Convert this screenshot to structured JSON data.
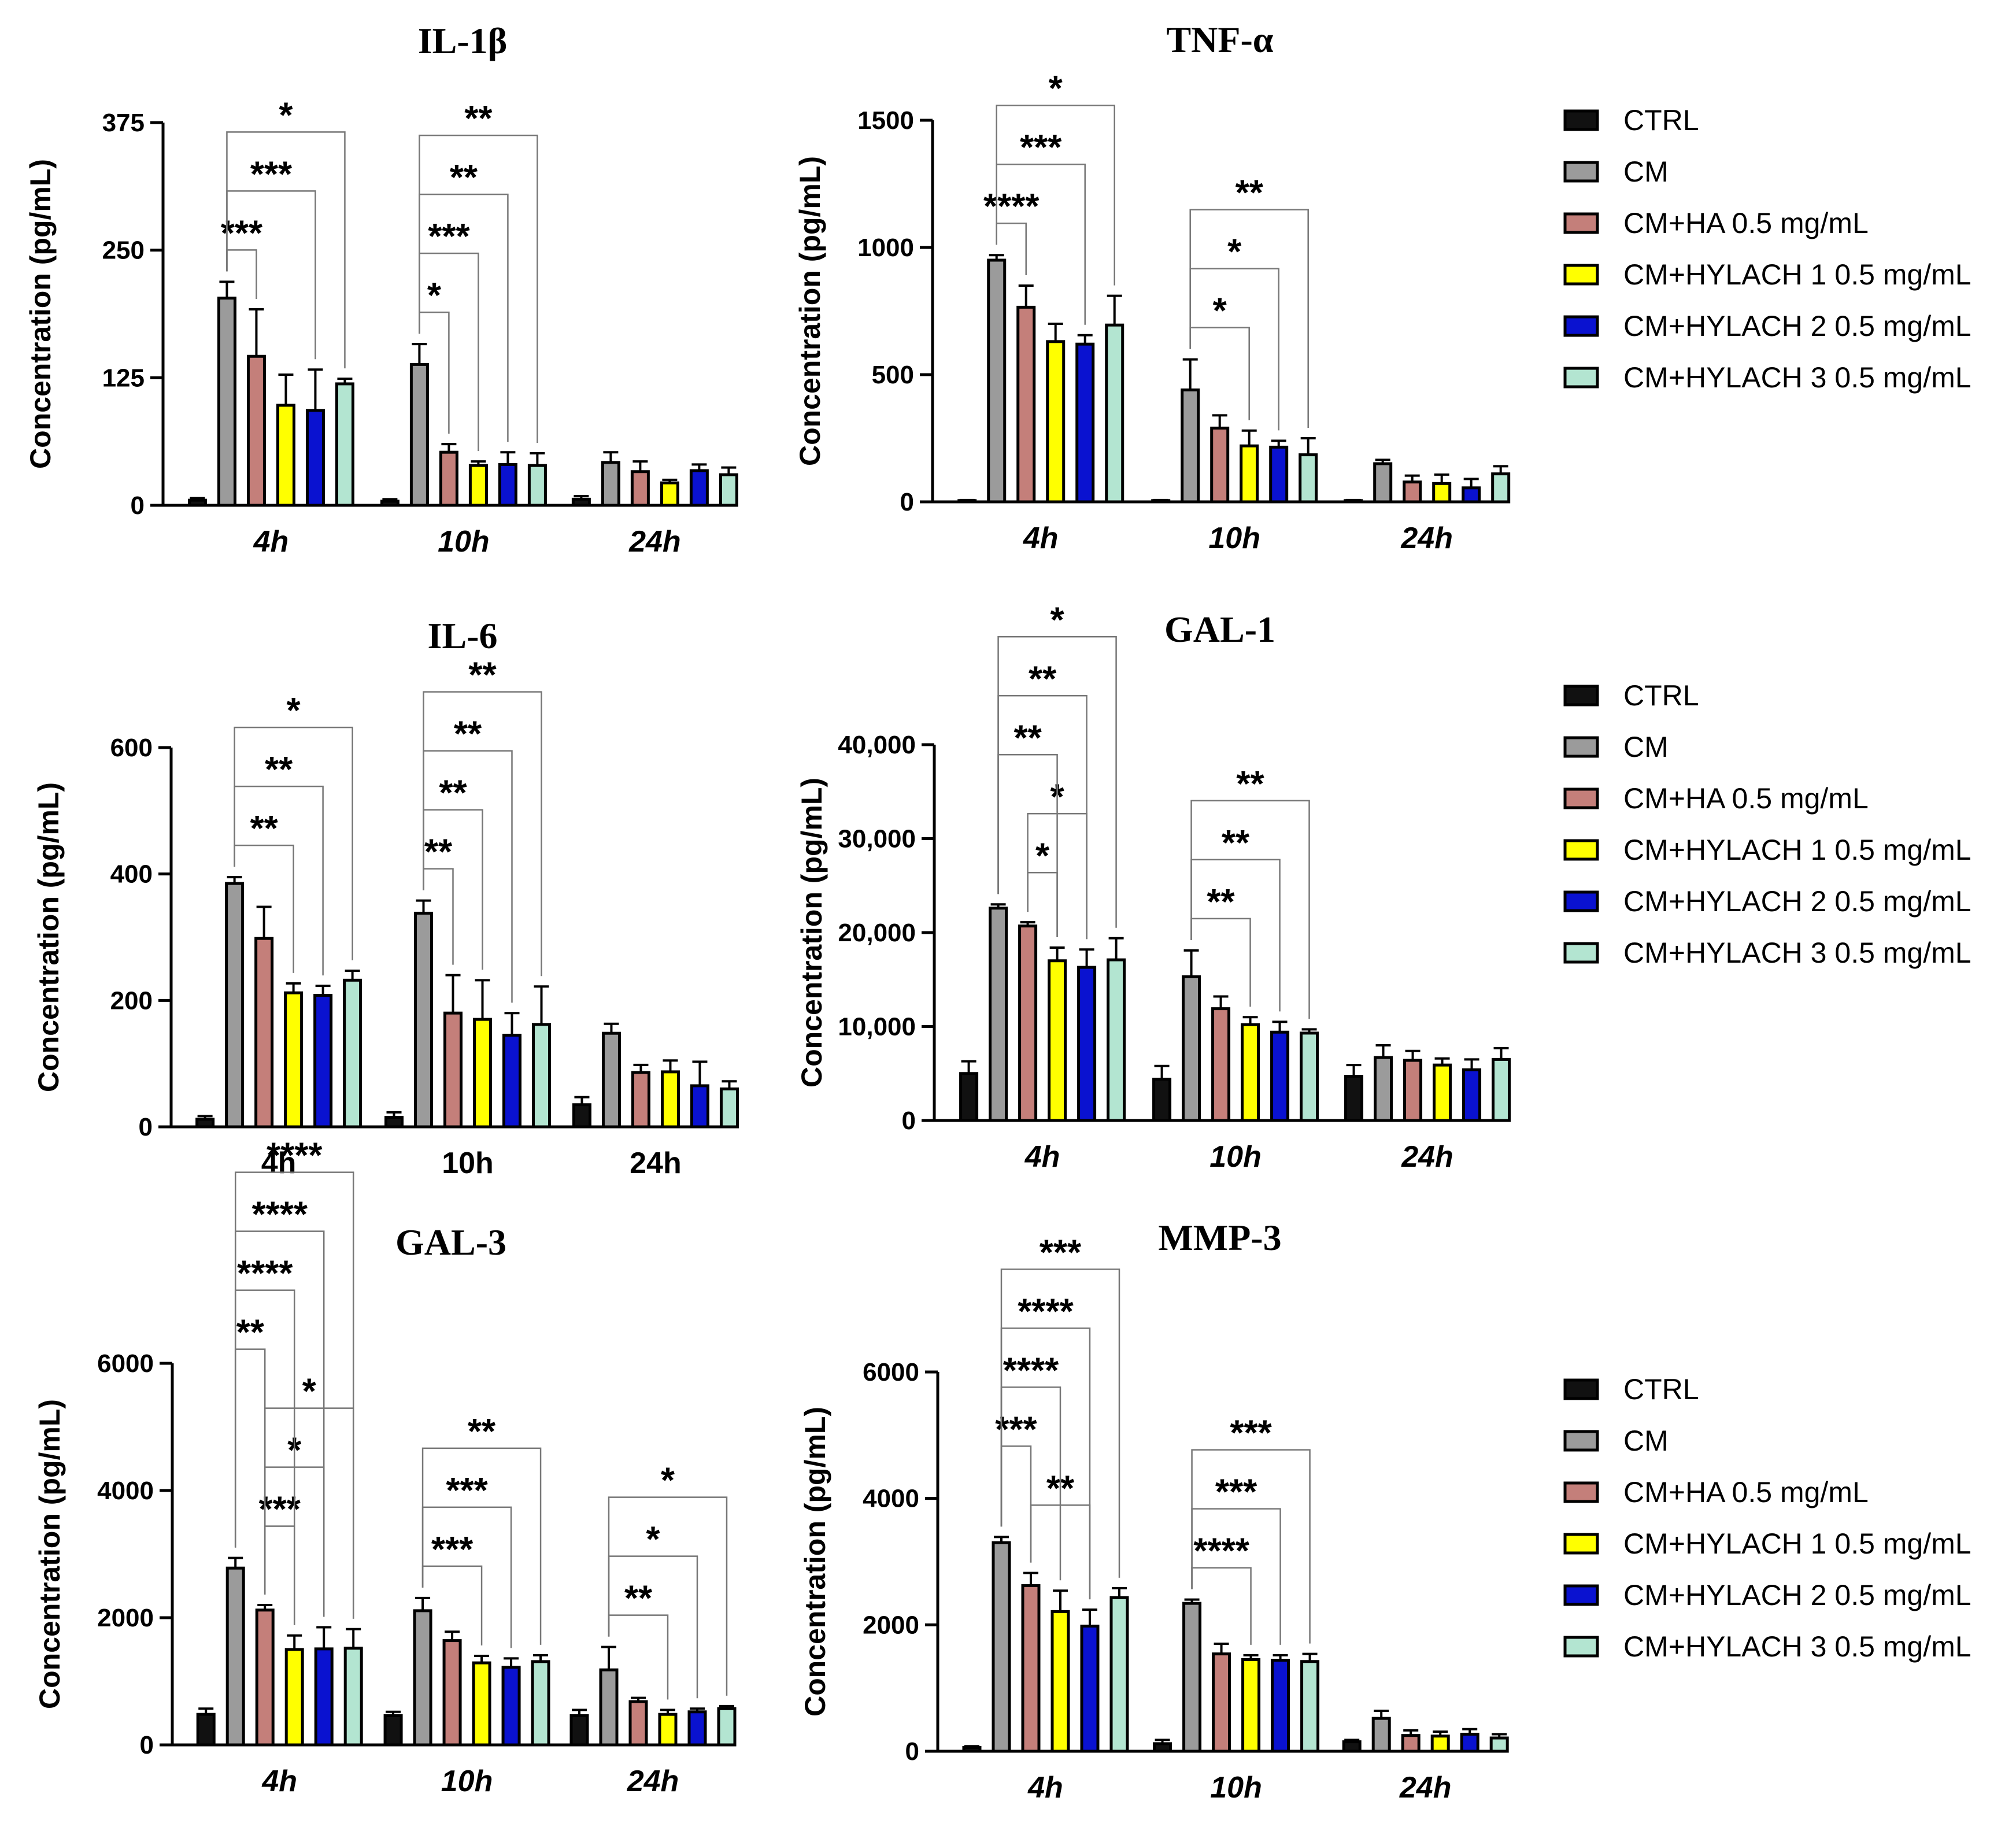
{
  "series_colors": {
    "CTRL": "#111111",
    "CM": "#9b9b9b",
    "CM+HA 0.5 mg/mL": "#c47f7a",
    "CM+HYLACH 1 0.5 mg/mL": "#ffff00",
    "CM+HYLACH 2 0.5 mg/mL": "#0a12d0",
    "CM+HYLACH 3 0.5 mg/mL": "#b3e5d1"
  },
  "legend_labels": [
    "CTRL",
    "CM",
    "CM+HA 0.5 mg/mL",
    "CM+HYLACH 1 0.5 mg/mL",
    "CM+HYLACH 2 0.5 mg/mL",
    "CM+HYLACH 3 0.5 mg/mL"
  ],
  "chart_data": [
    {
      "id": "il1b",
      "type": "bar",
      "title": "IL-1β",
      "ylabel": "Concentration (pg/mL)",
      "xlabel": "",
      "categories": [
        "4h",
        "10h",
        "24h"
      ],
      "category_style": "italic",
      "ylim": [
        0,
        375
      ],
      "yticks": [
        0,
        125,
        250,
        375
      ],
      "ytick_labels": [
        "0",
        "125",
        "250",
        "375"
      ],
      "series": [
        {
          "name": "CTRL",
          "values": [
            5,
            4,
            6
          ],
          "errors": [
            2,
            2,
            3
          ]
        },
        {
          "name": "CM",
          "values": [
            203,
            138,
            42
          ],
          "errors": [
            16,
            20,
            10
          ]
        },
        {
          "name": "CM+HA 0.5 mg/mL",
          "values": [
            146,
            52,
            33
          ],
          "errors": [
            46,
            8,
            10
          ]
        },
        {
          "name": "CM+HYLACH 1 0.5 mg/mL",
          "values": [
            98,
            39,
            22
          ],
          "errors": [
            30,
            4,
            3
          ]
        },
        {
          "name": "CM+HYLACH 2 0.5 mg/mL",
          "values": [
            93,
            40,
            34
          ],
          "errors": [
            40,
            12,
            6
          ]
        },
        {
          "name": "CM+HYLACH 3 0.5 mg/mL",
          "values": [
            119,
            39,
            30
          ],
          "errors": [
            5,
            12,
            7
          ]
        }
      ],
      "significance": [
        {
          "group": 0,
          "from": 1,
          "to": 2,
          "label": "***",
          "level": 0
        },
        {
          "group": 0,
          "from": 1,
          "to": 4,
          "label": "***",
          "level": 1
        },
        {
          "group": 0,
          "from": 1,
          "to": 5,
          "label": "*",
          "level": 2
        },
        {
          "group": 1,
          "from": 1,
          "to": 2,
          "label": "*",
          "level": 0
        },
        {
          "group": 1,
          "from": 1,
          "to": 3,
          "label": "***",
          "level": 1
        },
        {
          "group": 1,
          "from": 1,
          "to": 4,
          "label": "**",
          "level": 2
        },
        {
          "group": 1,
          "from": 1,
          "to": 5,
          "label": "**",
          "level": 3
        }
      ]
    },
    {
      "id": "tnfa",
      "type": "bar",
      "title": "TNF-α",
      "ylabel": "Concentration (pg/mL)",
      "xlabel": "",
      "categories": [
        "4h",
        "10h",
        "24h"
      ],
      "category_style": "italic",
      "ylim": [
        0,
        1500
      ],
      "yticks": [
        0,
        500,
        1000,
        1500
      ],
      "ytick_labels": [
        "0",
        "500",
        "1000",
        "1500"
      ],
      "series": [
        {
          "name": "CTRL",
          "values": [
            5,
            5,
            5
          ],
          "errors": [
            2,
            2,
            2
          ]
        },
        {
          "name": "CM",
          "values": [
            950,
            440,
            150
          ],
          "errors": [
            20,
            120,
            15
          ]
        },
        {
          "name": "CM+HA 0.5 mg/mL",
          "values": [
            765,
            290,
            78
          ],
          "errors": [
            85,
            50,
            25
          ]
        },
        {
          "name": "CM+HYLACH 1 0.5 mg/mL",
          "values": [
            630,
            220,
            72
          ],
          "errors": [
            70,
            60,
            35
          ]
        },
        {
          "name": "CM+HYLACH 2 0.5 mg/mL",
          "values": [
            620,
            215,
            55
          ],
          "errors": [
            35,
            25,
            35
          ]
        },
        {
          "name": "CM+HYLACH 3 0.5 mg/mL",
          "values": [
            695,
            185,
            110
          ],
          "errors": [
            115,
            65,
            30
          ]
        }
      ],
      "significance": [
        {
          "group": 0,
          "from": 1,
          "to": 2,
          "label": "****",
          "level": 0
        },
        {
          "group": 0,
          "from": 1,
          "to": 4,
          "label": "***",
          "level": 1
        },
        {
          "group": 0,
          "from": 1,
          "to": 5,
          "label": "*",
          "level": 2
        },
        {
          "group": 1,
          "from": 1,
          "to": 3,
          "label": "*",
          "level": 0
        },
        {
          "group": 1,
          "from": 1,
          "to": 4,
          "label": "*",
          "level": 1
        },
        {
          "group": 1,
          "from": 1,
          "to": 5,
          "label": "**",
          "level": 2
        }
      ]
    },
    {
      "id": "il6",
      "type": "bar",
      "title": "IL-6",
      "ylabel": "Concentration (pg/mL)",
      "xlabel": "",
      "categories": [
        "4h",
        "10h",
        "24h"
      ],
      "category_style": "normal",
      "ylim": [
        0,
        600
      ],
      "yticks": [
        0,
        200,
        400,
        600
      ],
      "ytick_labels": [
        "0",
        "200",
        "400",
        "600"
      ],
      "series": [
        {
          "name": "CTRL",
          "values": [
            12,
            15,
            35
          ],
          "errors": [
            5,
            8,
            12
          ]
        },
        {
          "name": "CM",
          "values": [
            385,
            338,
            148
          ],
          "errors": [
            10,
            20,
            15
          ]
        },
        {
          "name": "CM+HA 0.5 mg/mL",
          "values": [
            298,
            180,
            86
          ],
          "errors": [
            50,
            60,
            12
          ]
        },
        {
          "name": "CM+HYLACH 1 0.5 mg/mL",
          "values": [
            212,
            170,
            87
          ],
          "errors": [
            15,
            62,
            18
          ]
        },
        {
          "name": "CM+HYLACH 2 0.5 mg/mL",
          "values": [
            208,
            145,
            65
          ],
          "errors": [
            15,
            35,
            38
          ]
        },
        {
          "name": "CM+HYLACH 3 0.5 mg/mL",
          "values": [
            232,
            162,
            60
          ],
          "errors": [
            15,
            60,
            12
          ]
        }
      ],
      "significance": [
        {
          "group": 0,
          "from": 1,
          "to": 3,
          "label": "**",
          "level": 0
        },
        {
          "group": 0,
          "from": 1,
          "to": 4,
          "label": "**",
          "level": 1
        },
        {
          "group": 0,
          "from": 1,
          "to": 5,
          "label": "*",
          "level": 2
        },
        {
          "group": 1,
          "from": 1,
          "to": 2,
          "label": "**",
          "level": 0
        },
        {
          "group": 1,
          "from": 1,
          "to": 3,
          "label": "**",
          "level": 1
        },
        {
          "group": 1,
          "from": 1,
          "to": 4,
          "label": "**",
          "level": 2
        },
        {
          "group": 1,
          "from": 1,
          "to": 5,
          "label": "**",
          "level": 3
        }
      ]
    },
    {
      "id": "gal1",
      "type": "bar",
      "title": "GAL-1",
      "ylabel": "Concentration (pg/mL)",
      "xlabel": "",
      "categories": [
        "4h",
        "10h",
        "24h"
      ],
      "category_style": "italic",
      "ylim": [
        0,
        40000
      ],
      "yticks": [
        0,
        10000,
        20000,
        30000,
        40000
      ],
      "ytick_labels": [
        "0",
        "10,000",
        "20,000",
        "30,000",
        "40,000"
      ],
      "series": [
        {
          "name": "CTRL",
          "values": [
            5000,
            4400,
            4700
          ],
          "errors": [
            1300,
            1400,
            1200
          ]
        },
        {
          "name": "CM",
          "values": [
            22600,
            15300,
            6700
          ],
          "errors": [
            400,
            2800,
            1300
          ]
        },
        {
          "name": "CM+HA 0.5 mg/mL",
          "values": [
            20700,
            11900,
            6400
          ],
          "errors": [
            400,
            1300,
            1000
          ]
        },
        {
          "name": "CM+HYLACH 1 0.5 mg/mL",
          "values": [
            17000,
            10200,
            5900
          ],
          "errors": [
            1400,
            800,
            700
          ]
        },
        {
          "name": "CM+HYLACH 2 0.5 mg/mL",
          "values": [
            16300,
            9400,
            5400
          ],
          "errors": [
            1900,
            1100,
            1100
          ]
        },
        {
          "name": "CM+HYLACH 3 0.5 mg/mL",
          "values": [
            17100,
            9300,
            6500
          ],
          "errors": [
            2300,
            400,
            1200
          ]
        }
      ],
      "significance": [
        {
          "group": 0,
          "from": 2,
          "to": 3,
          "label": "*",
          "level": 0
        },
        {
          "group": 0,
          "from": 2,
          "to": 4,
          "label": "*",
          "level": 1
        },
        {
          "group": 0,
          "from": 1,
          "to": 3,
          "label": "**",
          "level": 2
        },
        {
          "group": 0,
          "from": 1,
          "to": 4,
          "label": "**",
          "level": 3
        },
        {
          "group": 0,
          "from": 1,
          "to": 5,
          "label": "*",
          "level": 4
        },
        {
          "group": 1,
          "from": 1,
          "to": 3,
          "label": "**",
          "level": 0
        },
        {
          "group": 1,
          "from": 1,
          "to": 4,
          "label": "**",
          "level": 1
        },
        {
          "group": 1,
          "from": 1,
          "to": 5,
          "label": "**",
          "level": 2
        }
      ]
    },
    {
      "id": "gal3",
      "type": "bar",
      "title": "GAL-3",
      "ylabel": "Concentration (pg/mL)",
      "xlabel": "",
      "categories": [
        "4h",
        "10h",
        "24h"
      ],
      "category_style": "italic",
      "ylim": [
        0,
        6000
      ],
      "yticks": [
        0,
        2000,
        4000,
        6000
      ],
      "ytick_labels": [
        "0",
        "2000",
        "4000",
        "6000"
      ],
      "series": [
        {
          "name": "CTRL",
          "values": [
            480,
            460,
            460
          ],
          "errors": [
            90,
            60,
            90
          ]
        },
        {
          "name": "CM",
          "values": [
            2780,
            2110,
            1180
          ],
          "errors": [
            160,
            200,
            360
          ]
        },
        {
          "name": "CM+HA 0.5 mg/mL",
          "values": [
            2120,
            1640,
            680
          ],
          "errors": [
            80,
            140,
            60
          ]
        },
        {
          "name": "CM+HYLACH 1 0.5 mg/mL",
          "values": [
            1500,
            1290,
            480
          ],
          "errors": [
            220,
            110,
            70
          ]
        },
        {
          "name": "CM+HYLACH 2 0.5 mg/mL",
          "values": [
            1510,
            1220,
            520
          ],
          "errors": [
            340,
            140,
            50
          ]
        },
        {
          "name": "CM+HYLACH 3 0.5 mg/mL",
          "values": [
            1520,
            1310,
            570
          ],
          "errors": [
            300,
            100,
            40
          ]
        }
      ],
      "significance": [
        {
          "group": 0,
          "from": 2,
          "to": 3,
          "label": "***",
          "level": 0
        },
        {
          "group": 0,
          "from": 2,
          "to": 4,
          "label": "*",
          "level": 1
        },
        {
          "group": 0,
          "from": 2,
          "to": 5,
          "label": "*",
          "level": 2
        },
        {
          "group": 0,
          "from": 1,
          "to": 2,
          "label": "**",
          "level": 3
        },
        {
          "group": 0,
          "from": 1,
          "to": 3,
          "label": "****",
          "level": 4
        },
        {
          "group": 0,
          "from": 1,
          "to": 4,
          "label": "****",
          "level": 5
        },
        {
          "group": 0,
          "from": 1,
          "to": 5,
          "label": "****",
          "level": 6
        },
        {
          "group": 1,
          "from": 1,
          "to": 3,
          "label": "***",
          "level": 0
        },
        {
          "group": 1,
          "from": 1,
          "to": 4,
          "label": "***",
          "level": 1
        },
        {
          "group": 1,
          "from": 1,
          "to": 5,
          "label": "**",
          "level": 2
        },
        {
          "group": 2,
          "from": 1,
          "to": 3,
          "label": "**",
          "level": 0
        },
        {
          "group": 2,
          "from": 1,
          "to": 4,
          "label": "*",
          "level": 1
        },
        {
          "group": 2,
          "from": 1,
          "to": 5,
          "label": "*",
          "level": 2
        }
      ]
    },
    {
      "id": "mmp3",
      "type": "bar",
      "title": "MMP-3",
      "ylabel": "Concentration (pg/mL)",
      "xlabel": "",
      "categories": [
        "4h",
        "10h",
        "24h"
      ],
      "category_style": "italic",
      "ylim": [
        0,
        6000
      ],
      "yticks": [
        0,
        2000,
        4000,
        6000
      ],
      "ytick_labels": [
        "0",
        "2000",
        "4000",
        "6000"
      ],
      "series": [
        {
          "name": "CTRL",
          "values": [
            60,
            120,
            150
          ],
          "errors": [
            20,
            60,
            30
          ]
        },
        {
          "name": "CM",
          "values": [
            3300,
            2340,
            520
          ],
          "errors": [
            90,
            60,
            120
          ]
        },
        {
          "name": "CM+HA 0.5 mg/mL",
          "values": [
            2620,
            1540,
            250
          ],
          "errors": [
            200,
            160,
            80
          ]
        },
        {
          "name": "CM+HYLACH 1 0.5 mg/mL",
          "values": [
            2210,
            1450,
            240
          ],
          "errors": [
            330,
            70,
            70
          ]
        },
        {
          "name": "CM+HYLACH 2 0.5 mg/mL",
          "values": [
            1980,
            1440,
            270
          ],
          "errors": [
            260,
            80,
            80
          ]
        },
        {
          "name": "CM+HYLACH 3 0.5 mg/mL",
          "values": [
            2430,
            1420,
            210
          ],
          "errors": [
            150,
            120,
            60
          ]
        }
      ],
      "significance": [
        {
          "group": 0,
          "from": 2,
          "to": 4,
          "label": "**",
          "level": 0
        },
        {
          "group": 0,
          "from": 1,
          "to": 2,
          "label": "***",
          "level": 1
        },
        {
          "group": 0,
          "from": 1,
          "to": 3,
          "label": "****",
          "level": 2
        },
        {
          "group": 0,
          "from": 1,
          "to": 4,
          "label": "****",
          "level": 3
        },
        {
          "group": 0,
          "from": 1,
          "to": 5,
          "label": "***",
          "level": 4
        },
        {
          "group": 1,
          "from": 1,
          "to": 3,
          "label": "****",
          "level": 0
        },
        {
          "group": 1,
          "from": 1,
          "to": 4,
          "label": "***",
          "level": 1
        },
        {
          "group": 1,
          "from": 1,
          "to": 5,
          "label": "***",
          "level": 2
        }
      ]
    }
  ]
}
